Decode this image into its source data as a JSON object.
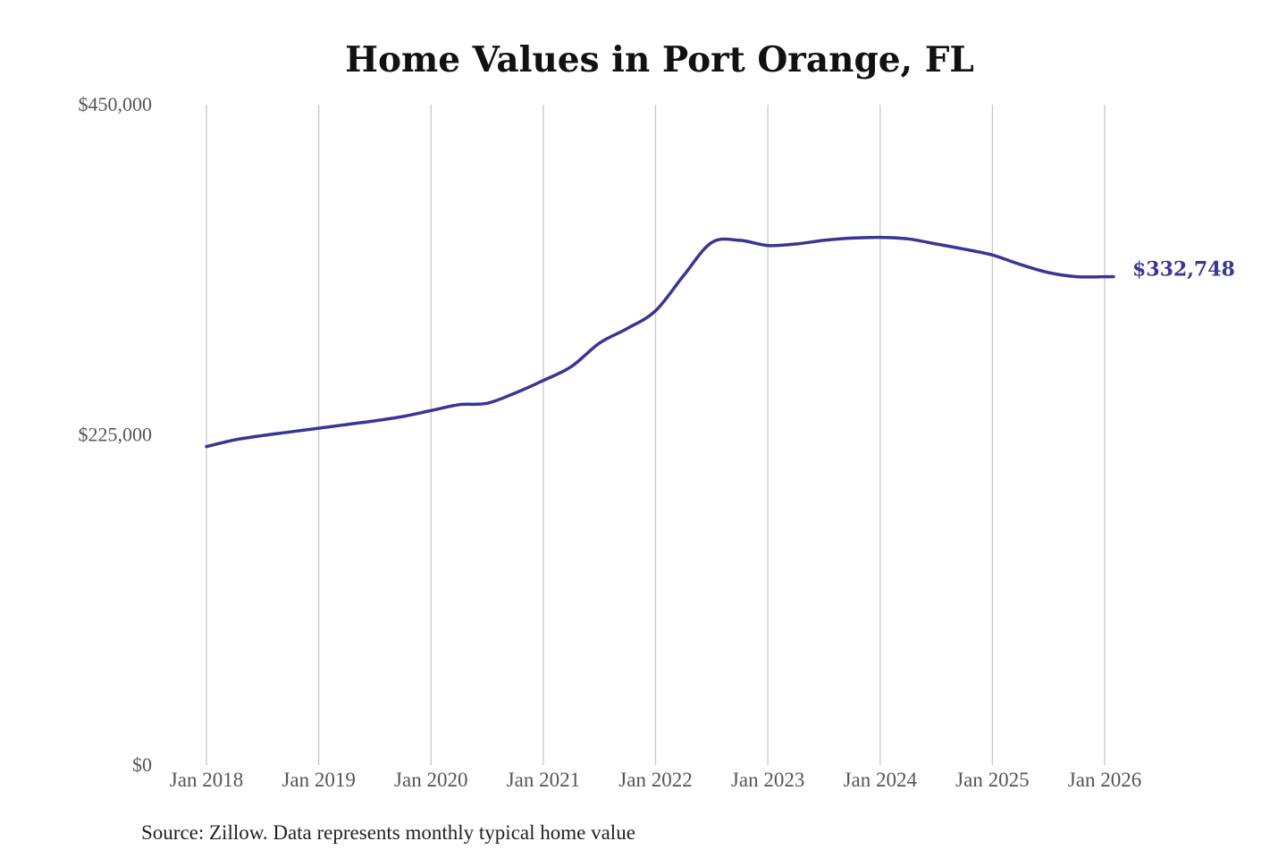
{
  "chart_data": {
    "type": "line",
    "title": "Home Values in Port Orange, FL",
    "source": "Source: Zillow. Data represents monthly typical home value",
    "y_ticks": [
      "$0",
      "$225,000",
      "$450,000"
    ],
    "x_ticks": [
      "Jan 2018",
      "Jan 2019",
      "Jan 2020",
      "Jan 2021",
      "Jan 2022",
      "Jan 2023",
      "Jan 2024",
      "Jan 2025",
      "Jan 2026"
    ],
    "ylim": [
      0,
      450000
    ],
    "xlim": [
      "2018-01",
      "2026-01"
    ],
    "grid": "vertical",
    "line_color": "#3a3593",
    "end_label": "$332,748",
    "series": [
      {
        "x": [
          "2018-01",
          "2018-04",
          "2018-07",
          "2018-10",
          "2019-01",
          "2019-04",
          "2019-07",
          "2019-10",
          "2020-01",
          "2020-04",
          "2020-07",
          "2020-10",
          "2021-01",
          "2021-04",
          "2021-07",
          "2021-10",
          "2022-01",
          "2022-04",
          "2022-07",
          "2022-10",
          "2023-01",
          "2023-04",
          "2023-07",
          "2023-10",
          "2024-01",
          "2024-04",
          "2024-07",
          "2024-10",
          "2025-01",
          "2025-04",
          "2025-07",
          "2025-10",
          "2026-01"
        ],
        "values": [
          217000,
          221500,
          224500,
          227000,
          229500,
          232000,
          234500,
          237500,
          241500,
          245500,
          246500,
          253500,
          262000,
          271500,
          287500,
          297500,
          309500,
          333500,
          356000,
          357500,
          354000,
          355000,
          357500,
          359000,
          359500,
          358500,
          355000,
          351500,
          347500,
          341000,
          335500,
          332748,
          332748
        ]
      }
    ]
  }
}
